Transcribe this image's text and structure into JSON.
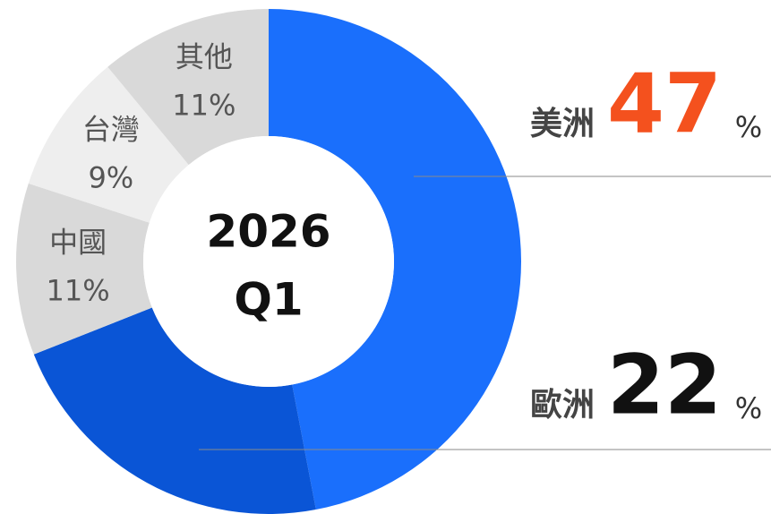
{
  "chart_data": {
    "type": "donut",
    "center_label": [
      "2026",
      "Q1"
    ],
    "categories": [
      "美洲",
      "歐洲",
      "中國",
      "台灣",
      "其他"
    ],
    "values": [
      47,
      22,
      11,
      9,
      11
    ],
    "value_labels": [
      "47",
      "22",
      "11%",
      "9%",
      "11%"
    ],
    "unit": "%",
    "colors": [
      "#1a6ffc",
      "#0a55d6",
      "#d9d9d9",
      "#eeeeee",
      "#d9d9d9"
    ]
  }
}
